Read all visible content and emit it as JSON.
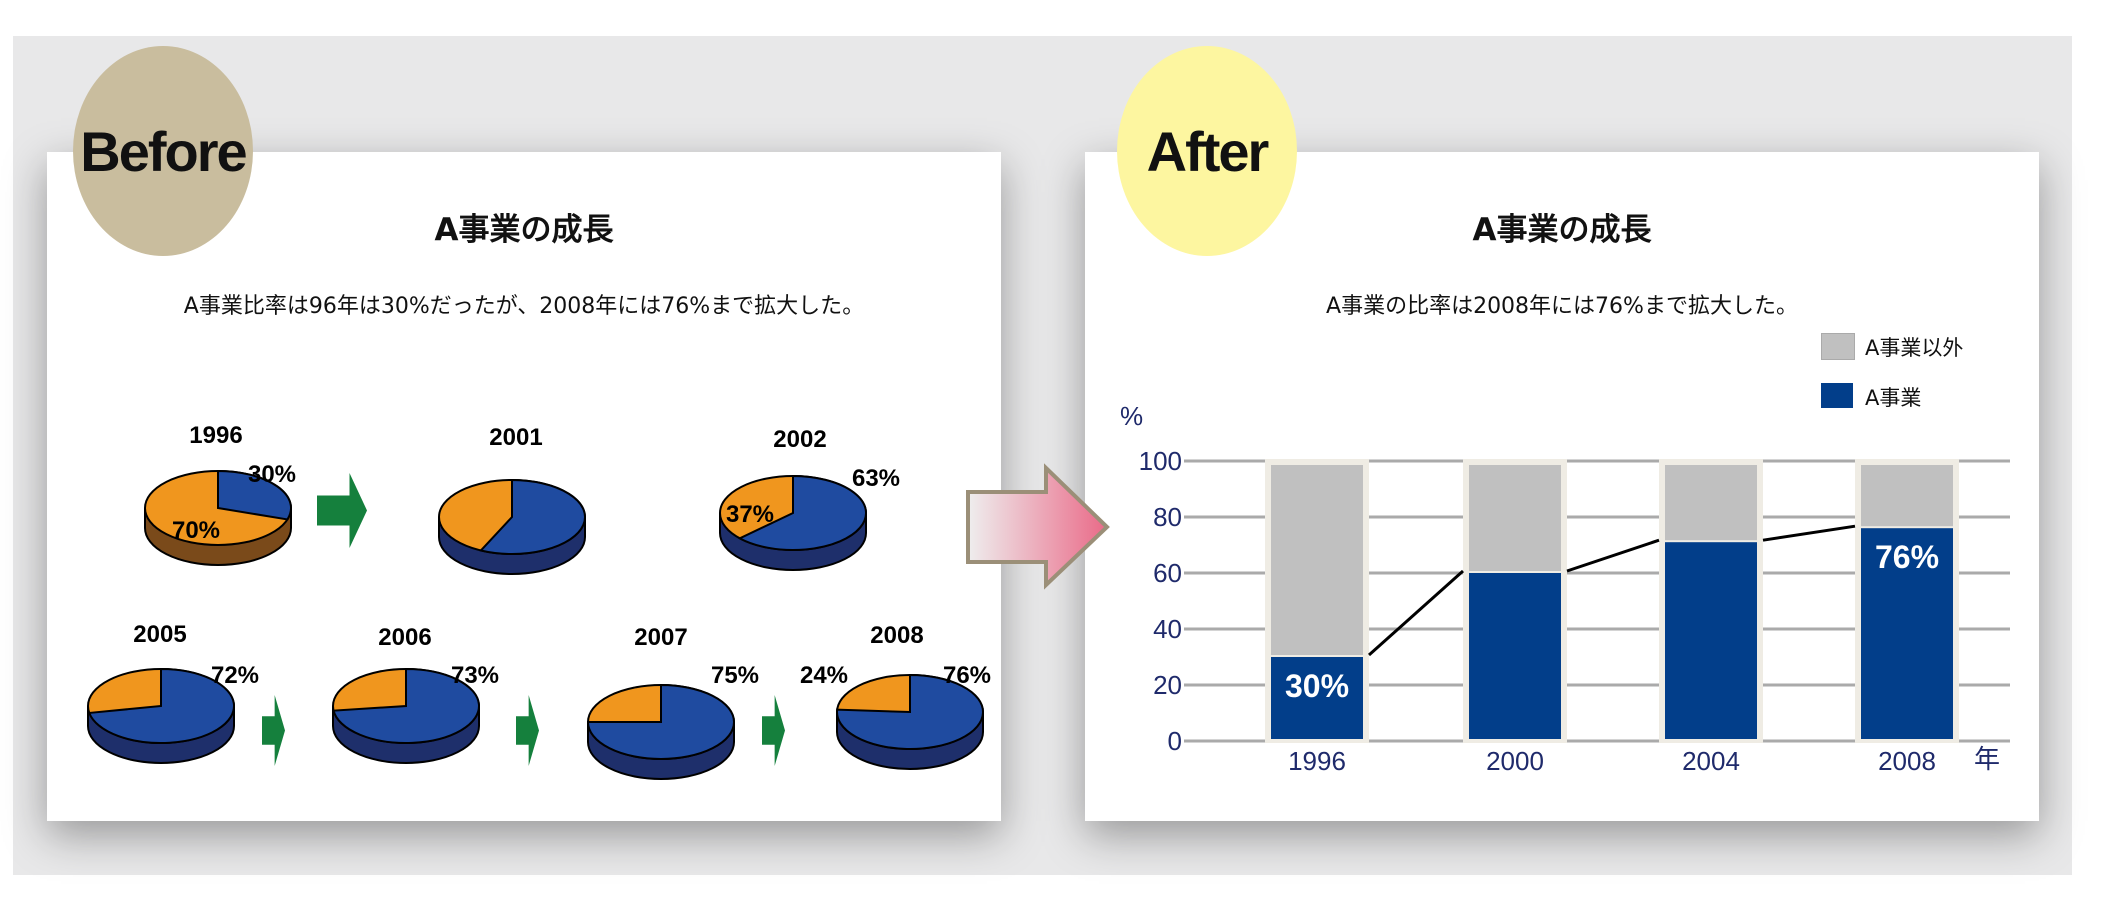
{
  "before": {
    "badge": "Before",
    "title": "A事業の成長",
    "subtitle": "A事業比率は96年は30%だったが、2008年には76%まで拡大した。"
  },
  "after": {
    "badge": "After",
    "title": "A事業の成長",
    "subtitle": "A事業の比率は2008年には76%まで拡大した。"
  },
  "colors": {
    "a_business": "#023e8a",
    "other": "#c0c0c0",
    "pie_blue": "#1f4ba0",
    "pie_orange": "#f0961e",
    "arrow_green": "#15803d",
    "badge_before": "#c9bd9e",
    "badge_after": "#fdf6a0"
  },
  "chart_data": [
    {
      "type": "pie",
      "series_name": "A事業",
      "pies": [
        {
          "year": "1996",
          "a_share": 30,
          "labels": [
            "30%",
            "70%"
          ]
        },
        {
          "year": "2001",
          "a_share": 57,
          "labels": []
        },
        {
          "year": "2002",
          "a_share": 63,
          "labels": [
            "63%",
            "37%"
          ]
        },
        {
          "year": "2005",
          "a_share": 72,
          "labels": [
            "72%"
          ]
        },
        {
          "year": "2006",
          "a_share": 73,
          "labels": [
            "73%"
          ]
        },
        {
          "year": "2007",
          "a_share": 75,
          "labels": [
            "75%"
          ]
        },
        {
          "year": "2008",
          "a_share": 76,
          "labels": [
            "76%",
            "24%"
          ]
        }
      ]
    },
    {
      "type": "bar",
      "stacked": true,
      "categories": [
        "1996",
        "2000",
        "2004",
        "2008"
      ],
      "series": [
        {
          "name": "A事業",
          "values": [
            30,
            60,
            71,
            76
          ]
        },
        {
          "name": "A事業以外",
          "values": [
            70,
            40,
            29,
            24
          ]
        }
      ],
      "data_labels": [
        {
          "category": "1996",
          "text": "30%"
        },
        {
          "category": "2008",
          "text": "76%"
        }
      ],
      "ylabel": "%",
      "xlabel": "年",
      "ylim": [
        0,
        100
      ],
      "yticks": [
        "0",
        "20",
        "40",
        "60",
        "80",
        "100"
      ],
      "grid": true,
      "legend": "top-right",
      "trend_line": true
    }
  ]
}
